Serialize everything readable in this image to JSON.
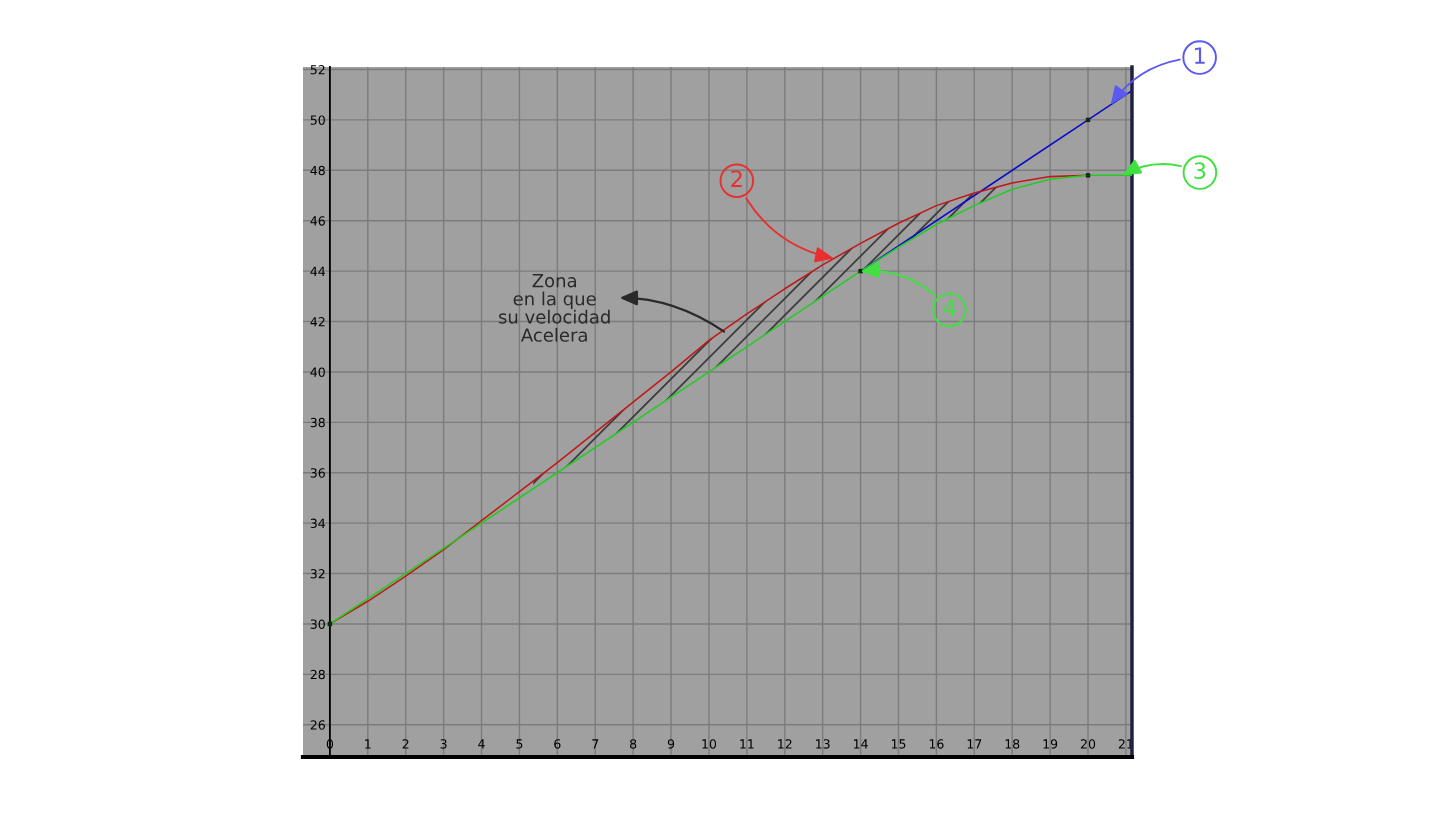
{
  "chart_data": {
    "type": "line",
    "xlim": [
      -0.71,
      21.16
    ],
    "ylim": [
      24.72,
      52.1
    ],
    "xticks": [
      0,
      1,
      2,
      3,
      4,
      5,
      6,
      7,
      8,
      9,
      10,
      11,
      12,
      13,
      14,
      15,
      16,
      17,
      18,
      19,
      20,
      21
    ],
    "yticks": [
      26,
      28,
      30,
      32,
      34,
      36,
      38,
      40,
      42,
      44,
      46,
      48,
      50,
      52
    ],
    "grid": true,
    "marker": "none",
    "line_style": "solid",
    "series": [
      {
        "color": "#0a0ac8",
        "x": [
          14,
          20,
          21.15
        ],
        "values": [
          44,
          50,
          51.15
        ]
      },
      {
        "color": "#c01818",
        "x": [
          0,
          1,
          2,
          3,
          4,
          5,
          6,
          7,
          8,
          9,
          10,
          11,
          12,
          13,
          14,
          15,
          16,
          17,
          18,
          19,
          20
        ],
        "values": [
          30,
          30.9,
          31.9,
          32.95,
          34.1,
          35.25,
          36.4,
          37.6,
          38.8,
          40.0,
          41.25,
          42.3,
          43.3,
          44.25,
          45.1,
          45.9,
          46.6,
          47.1,
          47.5,
          47.75,
          47.8
        ]
      },
      {
        "color": "#22cc22",
        "x": [
          0,
          14,
          15,
          16,
          17,
          18,
          19,
          20,
          21.15
        ],
        "values": [
          30,
          44,
          44.95,
          45.85,
          46.6,
          47.25,
          47.65,
          47.8,
          47.8
        ]
      },
      {
        "type": "scatter",
        "marker": "square",
        "color": "#0d2b0d",
        "x": [
          0,
          14,
          20,
          20
        ],
        "values": [
          30,
          44,
          50,
          47.8
        ]
      }
    ],
    "annotations": [
      {
        "text": "1",
        "x": 20.6,
        "y": 50.6
      },
      {
        "text": "2",
        "x": 13.3,
        "y": 44.5
      },
      {
        "text": "3",
        "x": 20.9,
        "y": 47.8
      },
      {
        "text": "4",
        "x": 14,
        "y": 44
      },
      {
        "text": "Zona\nen la que\nsu velocidad\nAcelera",
        "x": 10.4,
        "y": 41.6
      }
    ]
  }
}
